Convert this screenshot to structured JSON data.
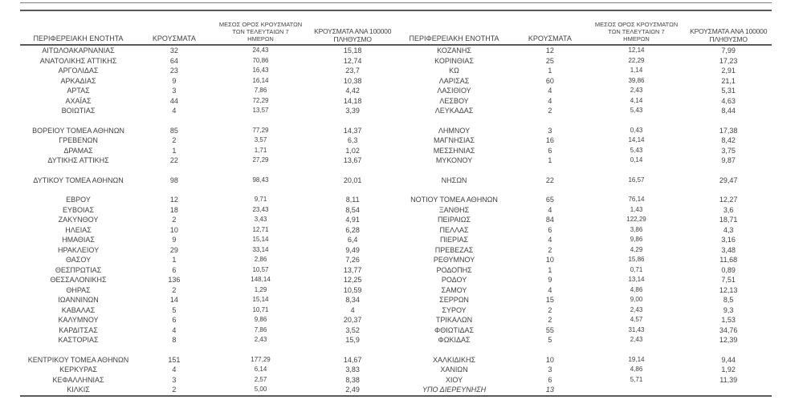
{
  "colors": {
    "background": "#ffffff",
    "text": "#3f3f3f",
    "rule_dark": "#595959",
    "rule_light": "#7f7f7f"
  },
  "table_headers": {
    "region": "ΠΕΡΙΦΕΡΕΙΑΚΗ ΕΝΟΤΗΤΑ",
    "cases": "ΚΡΟΥΣΜΑΤΑ",
    "avg7": "ΜΕΣΟΣ ΟΡΟΣ ΚΡΟΥΣΜΑΤΩΝ\nΤΩΝ ΤΕΛΕΥΤΑΙΩΝ 7\nΗΜΕΡΩΝ",
    "per100k": "ΚΡΟΥΣΜΑΤΑ ΑΝΑ 100000\nΠΛΗΘΥΣΜΟ"
  },
  "left_table": {
    "rows": [
      {
        "region": "ΑΙΤΩΛΟΑΚΑΡΝΑΝΙΑΣ",
        "cases": "32",
        "avg7": "24,43",
        "per100k": "15,18"
      },
      {
        "region": "ΑΝΑΤΟΛΙΚΗΣ ΑΤΤΙΚΗΣ",
        "cases": "64",
        "avg7": "70,86",
        "per100k": "12,74"
      },
      {
        "region": "ΑΡΓΟΛΙΔΑΣ",
        "cases": "23",
        "avg7": "16,43",
        "per100k": "23,7"
      },
      {
        "region": "ΑΡΚΑΔΙΑΣ",
        "cases": "9",
        "avg7": "16,14",
        "per100k": "10,38"
      },
      {
        "region": "ΑΡΤΑΣ",
        "cases": "3",
        "avg7": "7,86",
        "per100k": "4,42"
      },
      {
        "region": "ΑΧΑΪΑΣ",
        "cases": "44",
        "avg7": "72,29",
        "per100k": "14,18"
      },
      {
        "region": "ΒΟΙΩΤΙΑΣ",
        "cases": "4",
        "avg7": "13,57",
        "per100k": "3,39"
      },
      {
        "spacer": true
      },
      {
        "region": "ΒΟΡΕΙΟΥ ΤΟΜΕΑ ΑΘΗΝΩΝ",
        "cases": "85",
        "avg7": "77,29",
        "per100k": "14,37"
      },
      {
        "region": "ΓΡΕΒΕΝΩΝ",
        "cases": "2",
        "avg7": "3,57",
        "per100k": "6,3"
      },
      {
        "region": "ΔΡΑΜΑΣ",
        "cases": "1",
        "avg7": "1,71",
        "per100k": "1,02"
      },
      {
        "region": "ΔΥΤΙΚΗΣ ΑΤΤΙΚΗΣ",
        "cases": "22",
        "avg7": "27,29",
        "per100k": "13,67"
      },
      {
        "spacer": true
      },
      {
        "region": "ΔΥΤΙΚΟΥ ΤΟΜΕΑ ΑΘΗΝΩΝ",
        "cases": "98",
        "avg7": "98,43",
        "per100k": "20,01"
      },
      {
        "spacer": true
      },
      {
        "region": "ΕΒΡΟΥ",
        "cases": "12",
        "avg7": "9,71",
        "per100k": "8,11"
      },
      {
        "region": "ΕΥΒΟΙΑΣ",
        "cases": "18",
        "avg7": "23,43",
        "per100k": "8,54"
      },
      {
        "region": "ΖΑΚΥΝΘΟΥ",
        "cases": "2",
        "avg7": "3,43",
        "per100k": "4,91"
      },
      {
        "region": "ΗΛΕΙΑΣ",
        "cases": "10",
        "avg7": "12,71",
        "per100k": "6,28"
      },
      {
        "region": "ΗΜΑΘΙΑΣ",
        "cases": "9",
        "avg7": "15,14",
        "per100k": "6,4"
      },
      {
        "region": "ΗΡΑΚΛΕΙΟΥ",
        "cases": "29",
        "avg7": "33,14",
        "per100k": "9,49"
      },
      {
        "region": "ΘΑΣΟΥ",
        "cases": "1",
        "avg7": "2,86",
        "per100k": "7,26"
      },
      {
        "region": "ΘΕΣΠΡΩΤΙΑΣ",
        "cases": "6",
        "avg7": "10,57",
        "per100k": "13,77"
      },
      {
        "region": "ΘΕΣΣΑΛΟΝΙΚΗΣ",
        "cases": "136",
        "avg7": "148,14",
        "per100k": "12,25"
      },
      {
        "region": "ΘΗΡΑΣ",
        "cases": "2",
        "avg7": "1,29",
        "per100k": "10,59"
      },
      {
        "region": "ΙΩΑΝΝΙΝΩΝ",
        "cases": "14",
        "avg7": "15,14",
        "per100k": "8,34"
      },
      {
        "region": "ΚΑΒΑΛΑΣ",
        "cases": "5",
        "avg7": "10,71",
        "per100k": "4"
      },
      {
        "region": "ΚΑΛΥΜΝΟΥ",
        "cases": "6",
        "avg7": "9,86",
        "per100k": "20,37"
      },
      {
        "region": "ΚΑΡΔΙΤΣΑΣ",
        "cases": "4",
        "avg7": "7,86",
        "per100k": "3,52"
      },
      {
        "region": "ΚΑΣΤΟΡΙΑΣ",
        "cases": "8",
        "avg7": "2,43",
        "per100k": "15,9"
      },
      {
        "spacer": true
      },
      {
        "region": "ΚΕΝΤΡΙΚΟΥ ΤΟΜΕΑ ΑΘΗΝΩΝ",
        "cases": "151",
        "avg7": "177,29",
        "per100k": "14,67"
      },
      {
        "region": "ΚΕΡΚΥΡΑΣ",
        "cases": "4",
        "avg7": "6,14",
        "per100k": "3,83"
      },
      {
        "region": "ΚΕΦΑΛΛΗΝΙΑΣ",
        "cases": "3",
        "avg7": "2,57",
        "per100k": "8,38"
      },
      {
        "region": "ΚΙΛΚΙΣ",
        "cases": "2",
        "avg7": "5,00",
        "per100k": "2,49"
      }
    ]
  },
  "right_table": {
    "rows": [
      {
        "region": "ΚΟΖΑΝΗΣ",
        "cases": "12",
        "avg7": "12,14",
        "per100k": "7,99"
      },
      {
        "region": "ΚΟΡΙΝΘΙΑΣ",
        "cases": "25",
        "avg7": "22,29",
        "per100k": "17,23"
      },
      {
        "region": "ΚΩ",
        "cases": "1",
        "avg7": "1,14",
        "per100k": "2,91"
      },
      {
        "region": "ΛΑΡΙΣΑΣ",
        "cases": "60",
        "avg7": "39,86",
        "per100k": "21,1"
      },
      {
        "region": "ΛΑΣΙΘΙΟΥ",
        "cases": "4",
        "avg7": "2,43",
        "per100k": "5,31"
      },
      {
        "region": "ΛΕΣΒΟΥ",
        "cases": "4",
        "avg7": "4,14",
        "per100k": "4,63"
      },
      {
        "region": "ΛΕΥΚΑΔΑΣ",
        "cases": "2",
        "avg7": "5,43",
        "per100k": "8,44"
      },
      {
        "spacer": true
      },
      {
        "region": "ΛΗΜΝΟΥ",
        "cases": "3",
        "avg7": "0,43",
        "per100k": "17,38"
      },
      {
        "region": "ΜΑΓΝΗΣΙΑΣ",
        "cases": "16",
        "avg7": "14,14",
        "per100k": "8,42"
      },
      {
        "region": "ΜΕΣΣΗΝΙΑΣ",
        "cases": "6",
        "avg7": "5,43",
        "per100k": "3,75"
      },
      {
        "region": "ΜΥΚΟΝΟΥ",
        "cases": "1",
        "avg7": "0,14",
        "per100k": "9,87"
      },
      {
        "spacer": true
      },
      {
        "region": "ΝΗΣΩΝ",
        "cases": "22",
        "avg7": "16,57",
        "per100k": "29,47"
      },
      {
        "spacer": true
      },
      {
        "region": "ΝΟΤΙΟΥ ΤΟΜΕΑ ΑΘΗΝΩΝ",
        "cases": "65",
        "avg7": "76,14",
        "per100k": "12,27"
      },
      {
        "region": "ΞΑΝΘΗΣ",
        "cases": "4",
        "avg7": "1,43",
        "per100k": "3,6"
      },
      {
        "region": "ΠΕΙΡΑΙΩΣ",
        "cases": "84",
        "avg7": "122,29",
        "per100k": "18,71"
      },
      {
        "region": "ΠΕΛΛΑΣ",
        "cases": "6",
        "avg7": "3,86",
        "per100k": "4,3"
      },
      {
        "region": "ΠΙΕΡΙΑΣ",
        "cases": "4",
        "avg7": "9,86",
        "per100k": "3,16"
      },
      {
        "region": "ΠΡΕΒΕΖΑΣ",
        "cases": "2",
        "avg7": "4,29",
        "per100k": "3,48"
      },
      {
        "region": "ΡΕΘΥΜΝΟΥ",
        "cases": "10",
        "avg7": "15,86",
        "per100k": "11,68"
      },
      {
        "region": "ΡΟΔΟΠΗΣ",
        "cases": "1",
        "avg7": "0,71",
        "per100k": "0,89"
      },
      {
        "region": "ΡΟΔΟΥ",
        "cases": "9",
        "avg7": "13,14",
        "per100k": "7,51"
      },
      {
        "region": "ΣΑΜΟΥ",
        "cases": "4",
        "avg7": "4,86",
        "per100k": "12,13"
      },
      {
        "region": "ΣΕΡΡΩΝ",
        "cases": "15",
        "avg7": "9,00",
        "per100k": "8,5"
      },
      {
        "region": "ΣΥΡΟΥ",
        "cases": "2",
        "avg7": "2,43",
        "per100k": "9,3"
      },
      {
        "region": "ΤΡΙΚΑΛΩΝ",
        "cases": "2",
        "avg7": "4,57",
        "per100k": "1,53"
      },
      {
        "region": "ΦΘΙΩΤΙΔΑΣ",
        "cases": "55",
        "avg7": "31,43",
        "per100k": "34,76"
      },
      {
        "region": "ΦΩΚΙΔΑΣ",
        "cases": "5",
        "avg7": "2,43",
        "per100k": "12,39"
      },
      {
        "spacer": true
      },
      {
        "region": "ΧΑΛΚΙΔΙΚΗΣ",
        "cases": "10",
        "avg7": "19,14",
        "per100k": "9,44"
      },
      {
        "region": "ΧΑΝΙΩΝ",
        "cases": "3",
        "avg7": "4,86",
        "per100k": "1,92"
      },
      {
        "region": "ΧΙΟΥ",
        "cases": "6",
        "avg7": "5,71",
        "per100k": "11,39"
      },
      {
        "region": "ΥΠΟ ΔΙΕΡΕΥΝΗΣΗ",
        "cases": "13",
        "avg7": "",
        "per100k": "",
        "italic": true
      }
    ]
  }
}
